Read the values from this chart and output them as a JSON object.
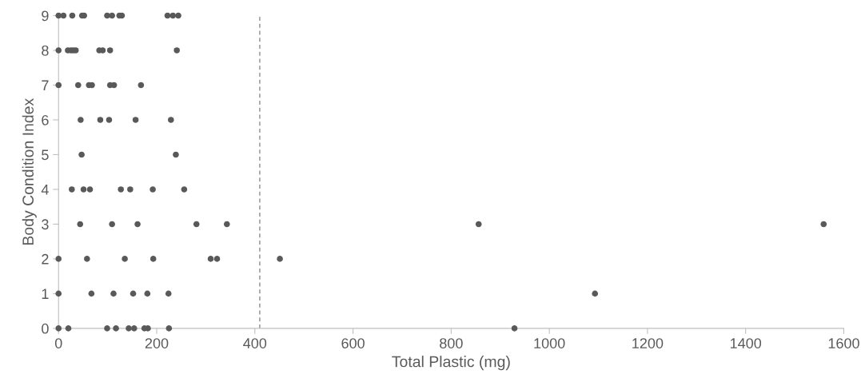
{
  "chart_data": {
    "type": "scatter",
    "xlabel": "Total Plastic (mg)",
    "ylabel": "Body Condition Index",
    "series": [
      {
        "color": "#595959",
        "x": [
          0,
          10,
          28,
          48,
          52,
          99,
          109,
          124,
          129,
          222,
          233,
          244,
          0,
          19,
          25,
          30,
          35,
          83,
          90,
          105,
          241,
          0,
          40,
          62,
          68,
          105,
          113,
          168,
          45,
          85,
          103,
          157,
          229,
          47,
          239,
          27,
          51,
          64,
          127,
          146,
          192,
          256,
          44,
          109,
          161,
          281,
          343,
          856,
          1559,
          0,
          58,
          135,
          193,
          310,
          323,
          451,
          0,
          67,
          112,
          152,
          181,
          224,
          1093,
          0,
          20,
          99,
          117,
          143,
          154,
          175,
          182,
          225,
          929
        ],
        "values": [
          9,
          9,
          9,
          9,
          9,
          9,
          9,
          9,
          9,
          9,
          9,
          9,
          8,
          8,
          8,
          8,
          8,
          8,
          8,
          8,
          8,
          7,
          7,
          7,
          7,
          7,
          7,
          7,
          6,
          6,
          6,
          6,
          6,
          5,
          5,
          4,
          4,
          4,
          4,
          4,
          4,
          4,
          3,
          3,
          3,
          3,
          3,
          3,
          3,
          2,
          2,
          2,
          2,
          2,
          2,
          2,
          1,
          1,
          1,
          1,
          1,
          1,
          1,
          0,
          0,
          0,
          0,
          0,
          0,
          0,
          0,
          0,
          0
        ]
      }
    ],
    "marker": "circle",
    "grid": false,
    "xlim": [
      0,
      1600
    ],
    "xticks": [
      0,
      200,
      400,
      600,
      800,
      1000,
      1200,
      1400,
      1600
    ],
    "ylim": [
      0,
      9
    ],
    "yticks": [
      0,
      1,
      2,
      3,
      4,
      5,
      6,
      7,
      8,
      9
    ],
    "ref_lines": [
      {
        "axis": "x",
        "value": 410,
        "color": "#808080",
        "line_style": "dashed"
      }
    ]
  }
}
